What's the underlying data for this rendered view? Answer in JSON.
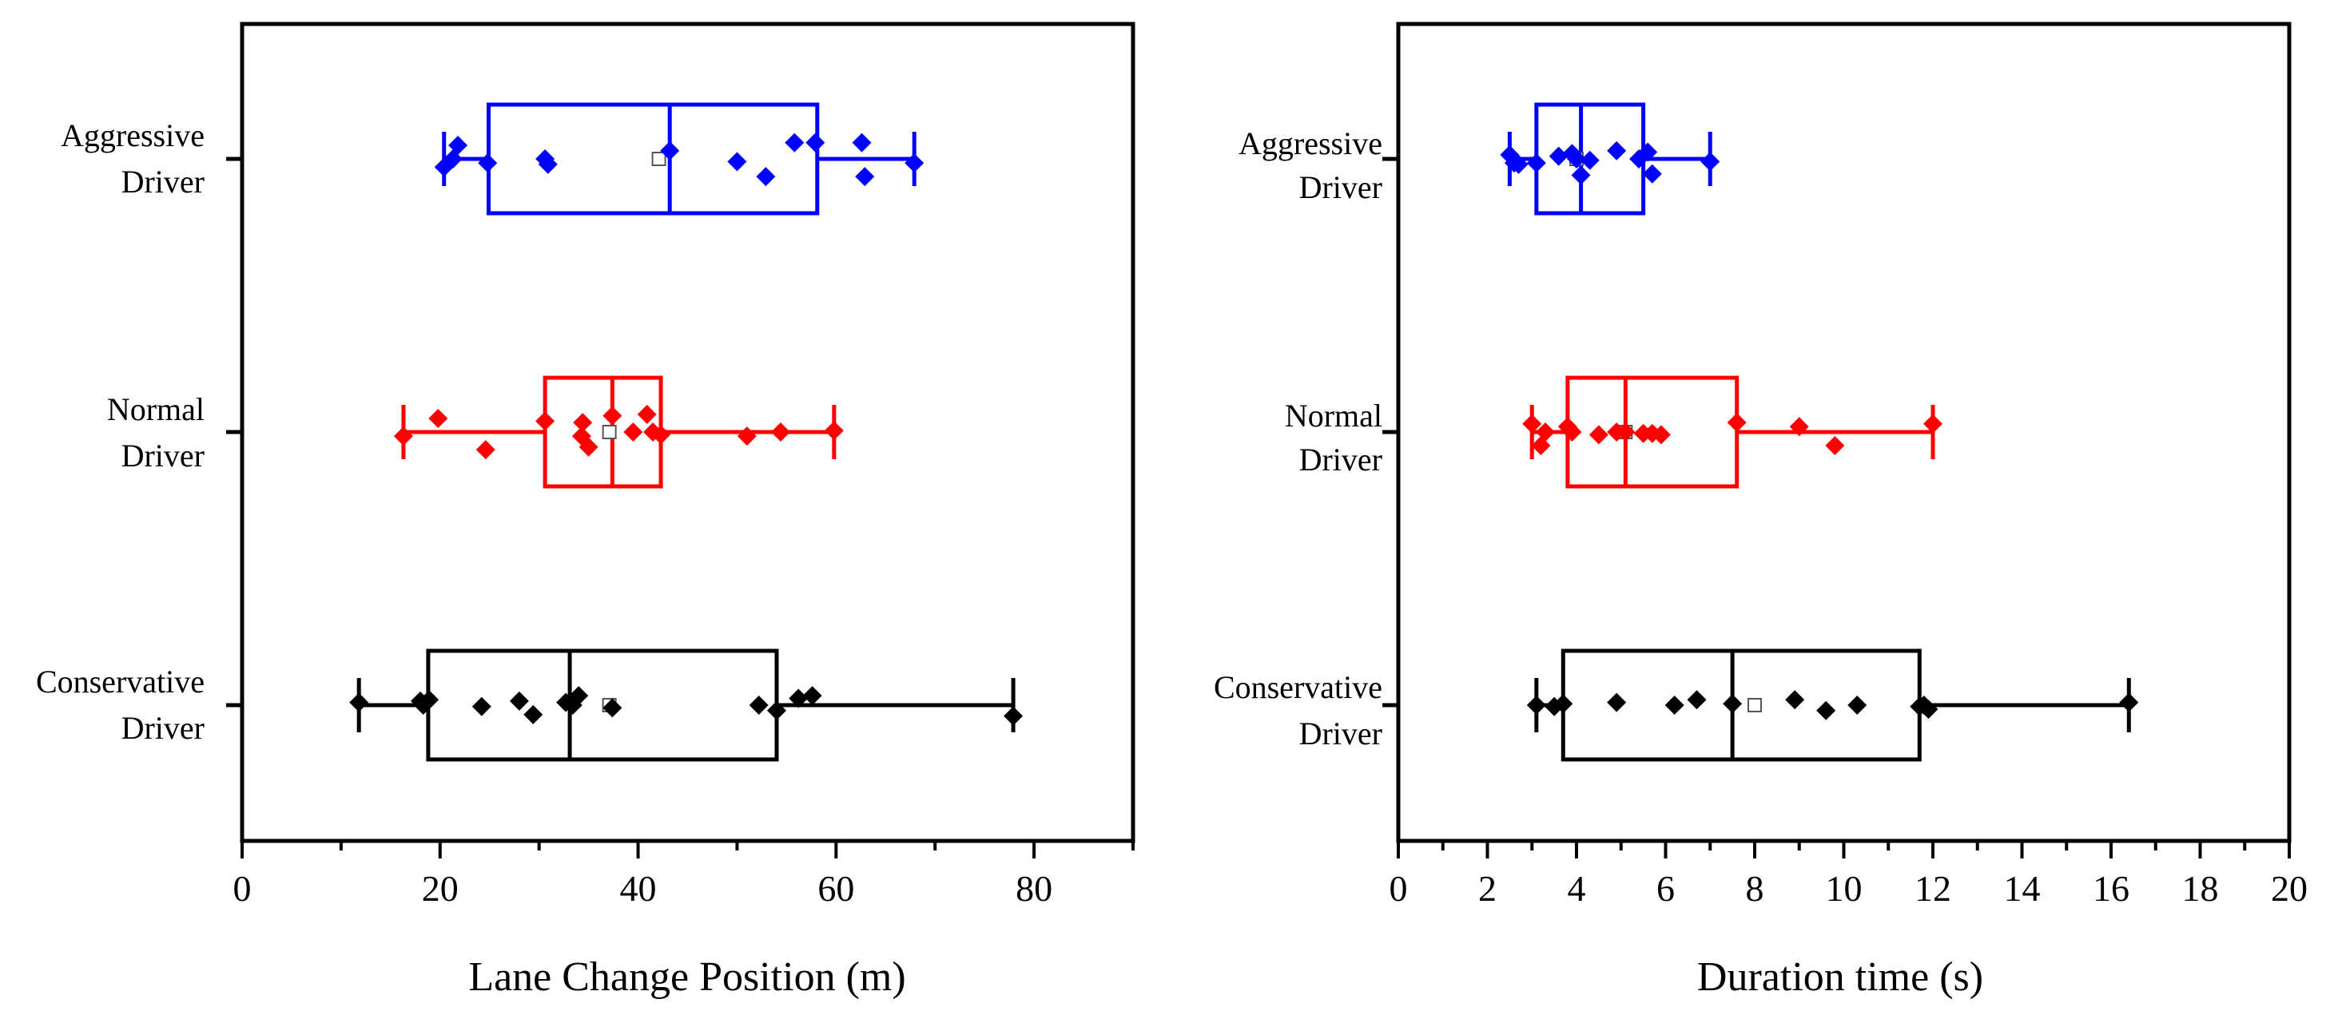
{
  "colors": {
    "aggressive": "#0000ff",
    "normal": "#ff0000",
    "conservative": "#000000"
  },
  "categories": [
    {
      "key": "aggressive",
      "line1": "Aggressive",
      "line2": "Driver"
    },
    {
      "key": "normal",
      "line1": "Normal",
      "line2": "Driver"
    },
    {
      "key": "conservative",
      "line1": "Conservative",
      "line2": "Driver"
    }
  ],
  "chart_data": [
    {
      "type": "boxplot",
      "orientation": "horizontal",
      "title": "",
      "xlabel": "Lane Change Position (m)",
      "xlim": [
        0,
        90
      ],
      "xticks": [
        0,
        20,
        40,
        60,
        80
      ],
      "minor_step": 10,
      "groups": [
        {
          "key": "aggressive",
          "name": "Aggressive Driver",
          "whisker_low": 20.4,
          "q1": 24.9,
          "median": 43.2,
          "q3": 58.1,
          "whisker_high": 67.9,
          "mean": 42.1,
          "points": [
            20.4,
            21.3,
            21.8,
            24.8,
            30.6,
            30.9,
            43.2,
            50.0,
            52.9,
            55.8,
            57.9,
            62.6,
            62.9,
            67.9
          ],
          "jitter": [
            0.06,
            0.0,
            -0.1,
            0.03,
            0.0,
            0.04,
            -0.06,
            0.02,
            0.13,
            -0.12,
            -0.12,
            -0.12,
            0.13,
            0.03
          ]
        },
        {
          "key": "normal",
          "name": "Normal Driver",
          "whisker_low": 16.3,
          "q1": 30.6,
          "median": 37.4,
          "q3": 42.3,
          "whisker_high": 59.8,
          "mean": 37.1,
          "points": [
            16.3,
            19.8,
            24.6,
            30.6,
            34.3,
            34.4,
            35.0,
            37.4,
            39.5,
            40.9,
            41.5,
            42.3,
            51.0,
            54.4,
            59.8
          ],
          "jitter": [
            0.03,
            -0.1,
            0.13,
            -0.08,
            0.03,
            -0.07,
            0.11,
            -0.12,
            0.0,
            -0.13,
            0.0,
            0.02,
            0.03,
            0.0,
            -0.01
          ],
          "whisker_cap_low": 16.3,
          "whisker_cap_high": 59.8
        },
        {
          "key": "conservative",
          "name": "Conservative Driver",
          "whisker_low": 11.8,
          "q1": 18.8,
          "median": 33.1,
          "q3": 54.0,
          "whisker_high": 77.9,
          "mean": 37.1,
          "points": [
            11.8,
            18.0,
            18.3,
            18.9,
            24.2,
            28.0,
            29.4,
            32.7,
            33.4,
            34.0,
            37.4,
            52.2,
            54.0,
            56.2,
            57.6,
            77.9
          ],
          "jitter": [
            -0.02,
            -0.03,
            0.0,
            -0.04,
            0.01,
            -0.03,
            0.07,
            -0.02,
            0.0,
            -0.07,
            0.02,
            0.0,
            0.04,
            -0.05,
            -0.07,
            0.08
          ]
        }
      ]
    },
    {
      "type": "boxplot",
      "orientation": "horizontal",
      "title": "",
      "xlabel": "Duration time (s)",
      "xlim": [
        0,
        20
      ],
      "xticks": [
        0,
        2,
        4,
        6,
        8,
        10,
        12,
        14,
        16,
        18,
        20
      ],
      "minor_step": 1,
      "groups": [
        {
          "key": "aggressive",
          "name": "Aggressive Driver",
          "whisker_low": 2.5,
          "q1": 3.1,
          "median": 4.1,
          "q3": 5.5,
          "whisker_high": 7.0,
          "mean": 4.0,
          "points": [
            2.5,
            2.6,
            2.7,
            3.1,
            3.6,
            3.9,
            4.0,
            4.1,
            4.3,
            4.9,
            5.4,
            5.6,
            5.7,
            7.0
          ],
          "jitter": [
            -0.03,
            0.03,
            0.04,
            0.03,
            -0.02,
            -0.04,
            0.0,
            0.12,
            0.01,
            -0.06,
            0.0,
            -0.05,
            0.11,
            0.02
          ]
        },
        {
          "key": "normal",
          "name": "Normal Driver",
          "whisker_low": 3.0,
          "q1": 3.8,
          "median": 5.1,
          "q3": 7.6,
          "whisker_high": 12.0,
          "mean": 5.1,
          "points": [
            3.0,
            3.2,
            3.3,
            3.8,
            3.9,
            4.5,
            4.9,
            5.1,
            5.5,
            5.7,
            5.9,
            7.6,
            9.0,
            9.8,
            12.0
          ],
          "jitter": [
            -0.06,
            0.1,
            0.0,
            -0.04,
            0.0,
            0.02,
            0.0,
            0.0,
            0.01,
            0.01,
            0.02,
            -0.07,
            -0.04,
            0.1,
            -0.06
          ],
          "whisker_cap_low": 3.0,
          "whisker_cap_high": 12.0
        },
        {
          "key": "conservative",
          "name": "Conservative Driver",
          "whisker_low": 3.1,
          "q1": 3.7,
          "median": 7.5,
          "q3": 11.7,
          "whisker_high": 16.4,
          "mean": 8.0,
          "points": [
            3.1,
            3.5,
            3.7,
            4.9,
            6.2,
            6.7,
            7.5,
            8.9,
            9.6,
            10.3,
            11.7,
            11.8,
            11.9,
            16.4
          ],
          "jitter": [
            0.0,
            0.01,
            -0.01,
            -0.02,
            0.0,
            -0.04,
            -0.01,
            -0.04,
            0.04,
            0.0,
            0.01,
            0.0,
            0.03,
            -0.02
          ]
        }
      ]
    }
  ]
}
